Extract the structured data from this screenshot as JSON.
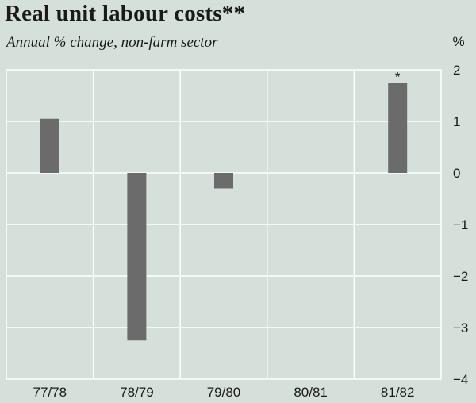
{
  "header": {
    "title": "Real unit labour costs**",
    "subtitle": "Annual % change, non-farm sector"
  },
  "chart_data": {
    "type": "bar",
    "title": "Real unit labour costs**",
    "subtitle": "Annual % change, non-farm sector",
    "categories": [
      "77/78",
      "78/79",
      "79/80",
      "80/81",
      "81/82"
    ],
    "values": [
      1.05,
      -3.25,
      -0.3,
      0.0,
      1.75
    ],
    "y_unit": "%",
    "ylim": [
      -4,
      2
    ],
    "yticks": [
      2,
      1,
      0,
      -1,
      -2,
      -3,
      -4
    ],
    "grid": true,
    "annotations": [
      {
        "category": "81/82",
        "text": "*"
      }
    ],
    "colors": {
      "bar": "#6b6b6b",
      "grid": "#ffffff",
      "background": "#d4e0d9"
    }
  }
}
